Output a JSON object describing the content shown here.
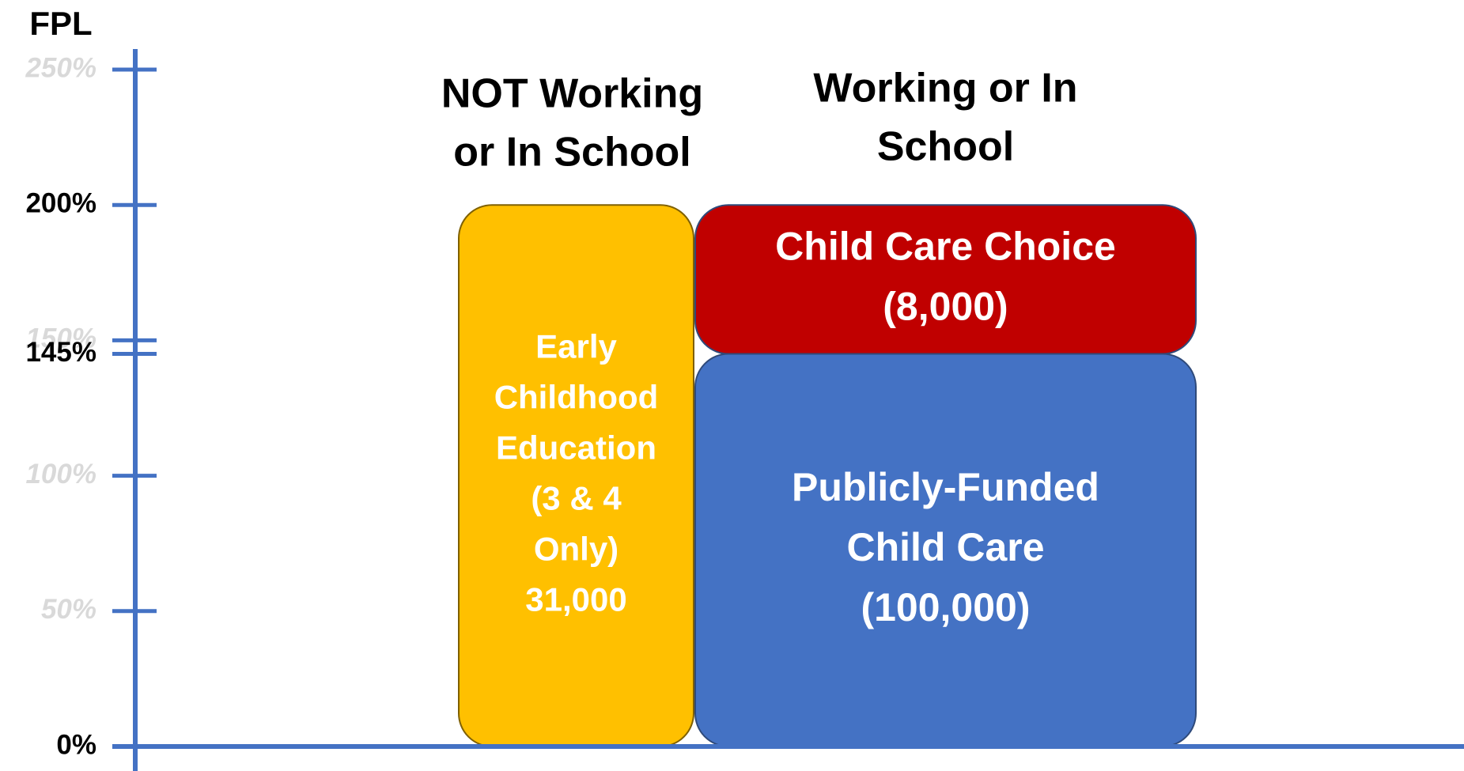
{
  "axis": {
    "label": "FPL",
    "ylim": [
      0,
      250
    ],
    "ticks": [
      {
        "value": 250,
        "label": "250%",
        "emphasis": false
      },
      {
        "value": 200,
        "label": "200%",
        "emphasis": true
      },
      {
        "value": 150,
        "label": "150%",
        "emphasis": false
      },
      {
        "value": 145,
        "label": "145%",
        "emphasis": true
      },
      {
        "value": 100,
        "label": "100%",
        "emphasis": false
      },
      {
        "value": 50,
        "label": "50%",
        "emphasis": false
      },
      {
        "value": 0,
        "label": "0%",
        "emphasis": true
      }
    ],
    "color": "#4472c4"
  },
  "columns": [
    {
      "heading": [
        "NOT Working",
        "or In School"
      ]
    },
    {
      "heading": [
        "Working or In",
        "School"
      ]
    }
  ],
  "boxes": [
    {
      "column": 0,
      "low": 0,
      "high": 200,
      "color": "#ffc000",
      "label": [
        "Early",
        "Childhood",
        "Education",
        "(3 & 4",
        "Only)",
        "31,000"
      ]
    },
    {
      "column": 1,
      "low": 145,
      "high": 200,
      "color": "#c00000",
      "label": [
        "Child Care Choice",
        "(8,000)"
      ]
    },
    {
      "column": 1,
      "low": 0,
      "high": 145,
      "color": "#4472c4",
      "label": [
        "Publicly-Funded",
        "Child Care",
        "(100,000)"
      ]
    }
  ]
}
